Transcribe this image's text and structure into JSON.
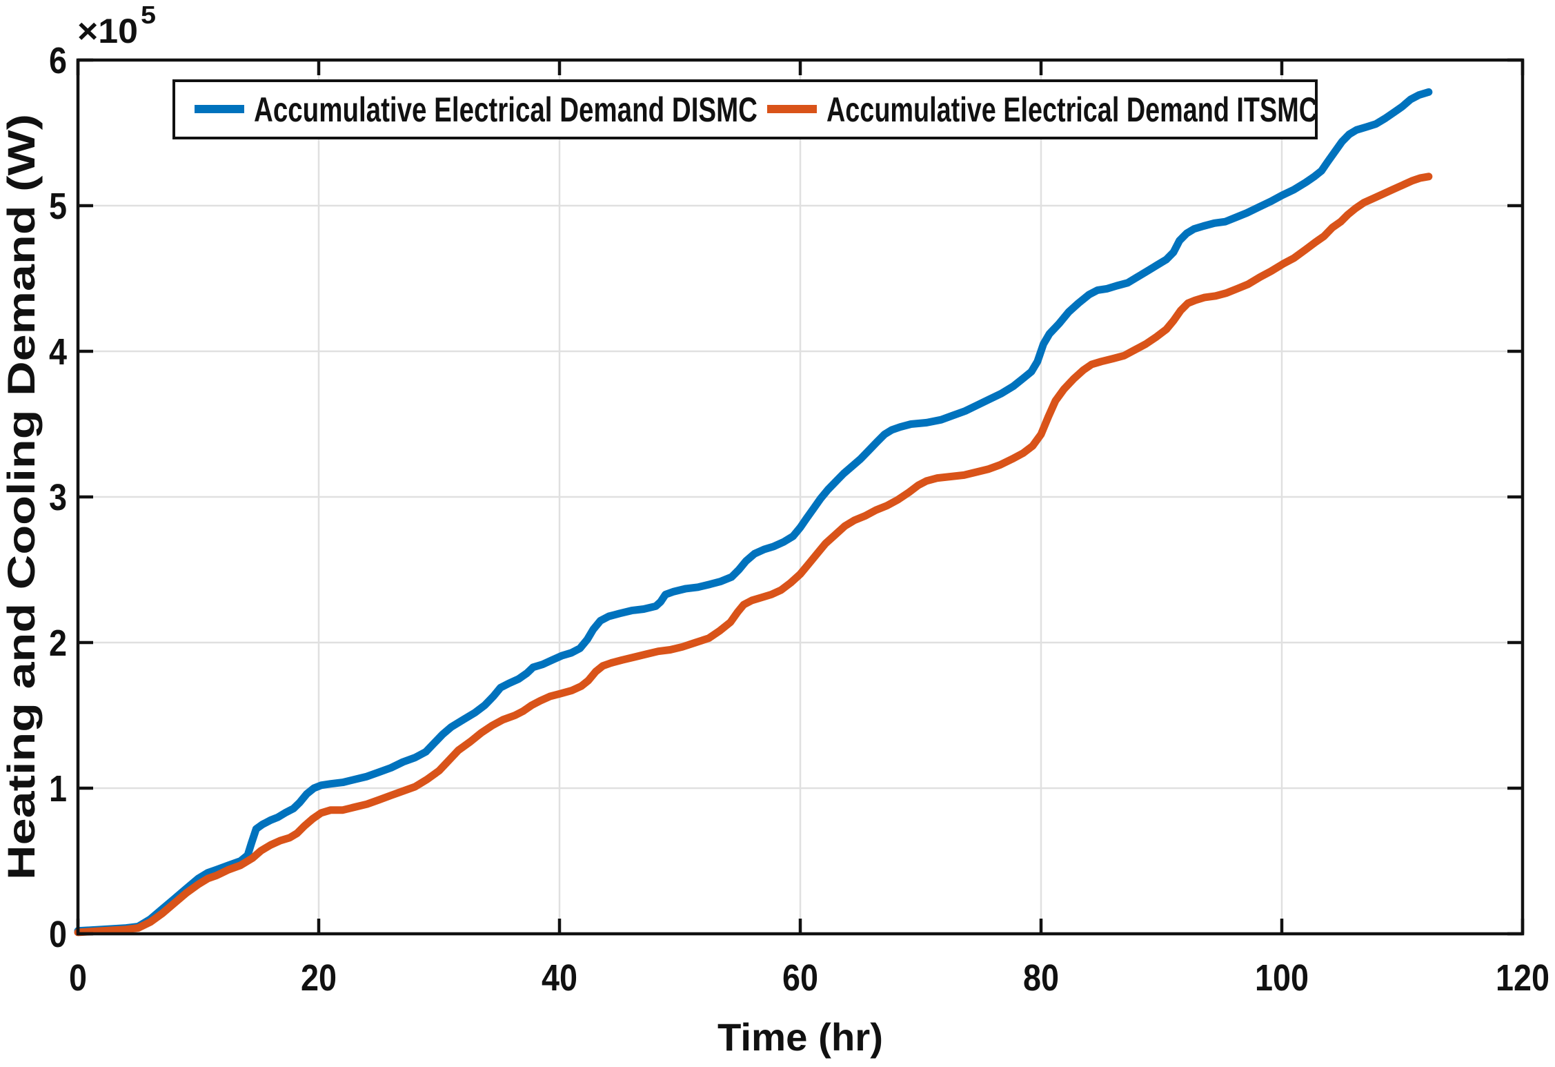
{
  "figure": {
    "background": "#ffffff"
  },
  "chart_data": {
    "type": "line",
    "title": "",
    "xlabel": "Time (hr)",
    "ylabel": "Heating and Cooling Demand (W)",
    "y_scale_exponent_base": "×10",
    "y_scale_exponent_power": "5",
    "y_unit_multiplier": 100000,
    "xlim": [
      0,
      120
    ],
    "ylim": [
      0,
      6
    ],
    "xticks": [
      0,
      20,
      40,
      60,
      80,
      100,
      120
    ],
    "yticks": [
      0,
      1,
      2,
      3,
      4,
      5,
      6
    ],
    "grid": true,
    "legend_position": "top-inside",
    "axis_color": "#111111",
    "grid_color": "#e0e0e0",
    "series": [
      {
        "name": "Accumulative Electrical Demand DISMC",
        "color": "#0072BD",
        "x": [
          0,
          2,
          4,
          5,
          6,
          7,
          8,
          9,
          10,
          10.8,
          11.5,
          12.5,
          13.5,
          14.1,
          14.4,
          14.8,
          15.3,
          16,
          16.6,
          17.2,
          17.9,
          18.4,
          19,
          19.6,
          20.2,
          21,
          22,
          23,
          24,
          25,
          26,
          27,
          28,
          28.9,
          29.6,
          30.3,
          31,
          32,
          33,
          33.8,
          34.5,
          35.1,
          35.8,
          36.6,
          37.3,
          37.8,
          38.6,
          39.4,
          40.2,
          41,
          41.7,
          42.3,
          42.8,
          43.4,
          44.1,
          45,
          46,
          47,
          48,
          48.4,
          48.8,
          49.5,
          50.5,
          51.5,
          52.5,
          53.4,
          54.3,
          54.9,
          55.5,
          56.2,
          57,
          57.8,
          58.6,
          59.4,
          60,
          60.5,
          61.1,
          61.7,
          62.3,
          63,
          63.6,
          64.3,
          65,
          65.7,
          66.4,
          67,
          67.6,
          68.3,
          69.2,
          70.5,
          71.7,
          72.7,
          73.7,
          74.7,
          75.7,
          76.7,
          77.7,
          78.6,
          79.2,
          79.7,
          80.2,
          80.7,
          81.5,
          82.3,
          83.1,
          84,
          84.7,
          85.5,
          86.3,
          87.2,
          88,
          88.8,
          89.6,
          90.4,
          91,
          91.5,
          92.1,
          92.7,
          93.5,
          94.4,
          95.3,
          96.2,
          97.1,
          98.1,
          99.1,
          100,
          101,
          102,
          102.7,
          103.3,
          103.8,
          104.4,
          105,
          105.6,
          106.2,
          107,
          107.8,
          108.6,
          109.3,
          110,
          110.7,
          111.4,
          112.2
        ],
        "y": [
          0.02,
          0.03,
          0.04,
          0.05,
          0.1,
          0.17,
          0.24,
          0.31,
          0.38,
          0.42,
          0.44,
          0.47,
          0.5,
          0.54,
          0.62,
          0.72,
          0.75,
          0.78,
          0.8,
          0.83,
          0.86,
          0.9,
          0.96,
          1.0,
          1.02,
          1.03,
          1.04,
          1.06,
          1.08,
          1.11,
          1.14,
          1.18,
          1.21,
          1.25,
          1.31,
          1.37,
          1.42,
          1.47,
          1.52,
          1.57,
          1.63,
          1.69,
          1.72,
          1.75,
          1.79,
          1.83,
          1.85,
          1.88,
          1.91,
          1.93,
          1.96,
          2.02,
          2.09,
          2.15,
          2.18,
          2.2,
          2.22,
          2.23,
          2.25,
          2.28,
          2.33,
          2.35,
          2.37,
          2.38,
          2.4,
          2.42,
          2.45,
          2.5,
          2.56,
          2.61,
          2.64,
          2.66,
          2.69,
          2.73,
          2.79,
          2.85,
          2.92,
          2.99,
          3.05,
          3.11,
          3.16,
          3.21,
          3.26,
          3.32,
          3.38,
          3.43,
          3.46,
          3.48,
          3.5,
          3.51,
          3.53,
          3.56,
          3.59,
          3.63,
          3.67,
          3.71,
          3.76,
          3.82,
          3.86,
          3.93,
          4.05,
          4.12,
          4.19,
          4.27,
          4.33,
          4.39,
          4.42,
          4.43,
          4.45,
          4.47,
          4.51,
          4.55,
          4.59,
          4.63,
          4.68,
          4.76,
          4.81,
          4.84,
          4.86,
          4.88,
          4.89,
          4.92,
          4.95,
          4.99,
          5.03,
          5.07,
          5.11,
          5.16,
          5.2,
          5.24,
          5.3,
          5.37,
          5.44,
          5.49,
          5.52,
          5.54,
          5.56,
          5.6,
          5.64,
          5.68,
          5.73,
          5.76,
          5.78
        ]
      },
      {
        "name": "Accumulative Electrical Demand ITSMC",
        "color": "#D95319",
        "x": [
          0,
          2,
          4,
          5,
          6,
          7,
          8,
          9,
          10,
          10.8,
          11.5,
          12.5,
          13.5,
          14.5,
          15.2,
          16,
          16.8,
          17.6,
          18.2,
          18.8,
          19.5,
          20.2,
          21,
          22,
          23,
          24,
          25,
          26,
          27,
          28,
          29,
          30,
          30.8,
          31.6,
          32.6,
          33.5,
          34.4,
          35.3,
          36.3,
          37,
          37.7,
          38.4,
          39.2,
          40.1,
          41,
          41.8,
          42.4,
          43,
          43.6,
          44.3,
          45.2,
          46.2,
          47.2,
          48.2,
          49.2,
          50.2,
          51.3,
          52.4,
          53.3,
          54.2,
          54.8,
          55.3,
          56,
          56.8,
          57.6,
          58.4,
          59.2,
          60,
          60.7,
          61.4,
          62.1,
          62.9,
          63.7,
          64.5,
          65.4,
          66.3,
          67.2,
          68.1,
          69,
          69.8,
          70.5,
          71.4,
          72.5,
          73.6,
          74.6,
          75.6,
          76.6,
          77.6,
          78.5,
          79.3,
          80,
          80.6,
          81.2,
          81.9,
          82.7,
          83.5,
          84.2,
          85,
          86,
          86.9,
          87.8,
          88.7,
          89.6,
          90.4,
          91,
          91.6,
          92.2,
          92.8,
          93.6,
          94.5,
          95.4,
          96.3,
          97.2,
          98.2,
          99.1,
          100.1,
          101,
          102,
          102.8,
          103.5,
          104.2,
          104.9,
          105.5,
          106.1,
          106.8,
          107.6,
          108.4,
          109.2,
          110,
          110.8,
          111.5,
          112.2
        ],
        "y": [
          0.01,
          0.02,
          0.03,
          0.04,
          0.08,
          0.14,
          0.21,
          0.28,
          0.34,
          0.38,
          0.4,
          0.44,
          0.47,
          0.52,
          0.57,
          0.61,
          0.64,
          0.66,
          0.69,
          0.74,
          0.79,
          0.83,
          0.85,
          0.85,
          0.87,
          0.89,
          0.92,
          0.95,
          0.98,
          1.01,
          1.06,
          1.12,
          1.19,
          1.26,
          1.32,
          1.38,
          1.43,
          1.47,
          1.5,
          1.53,
          1.57,
          1.6,
          1.63,
          1.65,
          1.67,
          1.7,
          1.74,
          1.8,
          1.84,
          1.86,
          1.88,
          1.9,
          1.92,
          1.94,
          1.95,
          1.97,
          2.0,
          2.03,
          2.08,
          2.14,
          2.21,
          2.26,
          2.29,
          2.31,
          2.33,
          2.36,
          2.41,
          2.47,
          2.54,
          2.61,
          2.68,
          2.74,
          2.8,
          2.84,
          2.87,
          2.91,
          2.94,
          2.98,
          3.03,
          3.08,
          3.11,
          3.13,
          3.14,
          3.15,
          3.17,
          3.19,
          3.22,
          3.26,
          3.3,
          3.35,
          3.43,
          3.55,
          3.66,
          3.74,
          3.81,
          3.87,
          3.91,
          3.93,
          3.95,
          3.97,
          4.01,
          4.05,
          4.1,
          4.15,
          4.21,
          4.28,
          4.33,
          4.35,
          4.37,
          4.38,
          4.4,
          4.43,
          4.46,
          4.51,
          4.55,
          4.6,
          4.64,
          4.7,
          4.75,
          4.79,
          4.85,
          4.89,
          4.94,
          4.98,
          5.02,
          5.05,
          5.08,
          5.11,
          5.14,
          5.17,
          5.19,
          5.2
        ]
      }
    ]
  }
}
